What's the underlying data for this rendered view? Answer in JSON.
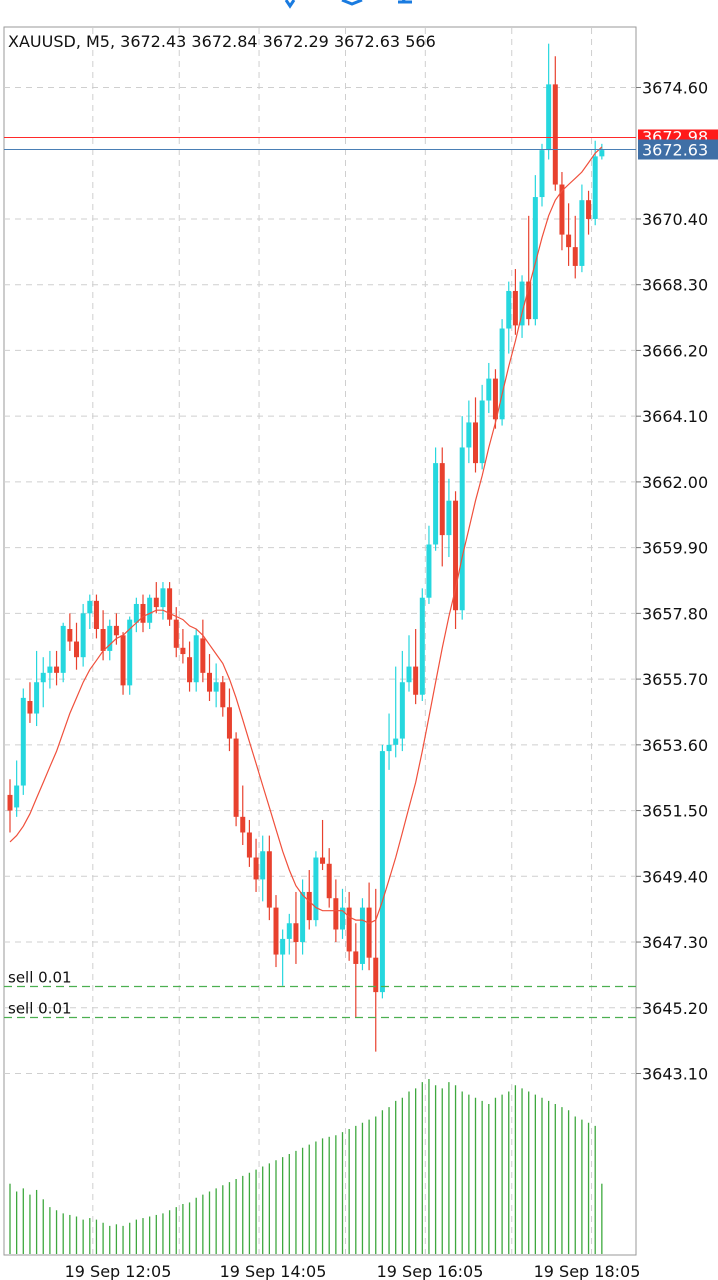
{
  "header": {
    "symbol": "XAUUSD",
    "timeframe": "M5",
    "open": "3672.43",
    "high": "3672.84",
    "low": "3672.29",
    "close": "3672.63",
    "volume": "566"
  },
  "y_ticks": [
    "3674.60",
    "3672.98",
    "3672.63",
    "3670.40",
    "3668.30",
    "3666.20",
    "3664.10",
    "3662.00",
    "3659.90",
    "3657.80",
    "3655.70",
    "3653.60",
    "3651.50",
    "3649.40",
    "3647.30",
    "3645.20",
    "3643.10"
  ],
  "ask_label": "3672.98",
  "bid_label": "3672.63",
  "orders": [
    {
      "label": "sell 0.01",
      "price": 3645.7
    },
    {
      "label": "sell 0.01",
      "price": 3644.75
    }
  ],
  "x_labels": [
    "19 Sep 12:05",
    "19 Sep 14:05",
    "19 Sep 16:05",
    "19 Sep 18:05"
  ],
  "colors": {
    "bull": "#26d7de",
    "bear": "#e8412e",
    "ma": "#f0503c",
    "volume": "#3ea83e",
    "grid": "#cfcfcf",
    "ask_line": "#ff2a2a",
    "bid_line": "#4a7fb5",
    "order_line": "#4caf50",
    "top_icon": "#1a7be0"
  },
  "chart_data": {
    "type": "candlestick",
    "title": "XAUUSD, M5",
    "y_range": [
      3641.9,
      3676.6
    ],
    "x_tick_candle_index": [
      12,
      37,
      62,
      87
    ],
    "candles": [
      [
        3652.0,
        3652.5,
        3650.8,
        3651.5
      ],
      [
        3651.6,
        3653.1,
        3651.3,
        3652.3
      ],
      [
        3652.3,
        3655.4,
        3652.0,
        3655.1
      ],
      [
        3655.0,
        3655.6,
        3654.3,
        3654.6
      ],
      [
        3654.6,
        3656.6,
        3654.2,
        3655.6
      ],
      [
        3655.6,
        3656.4,
        3654.8,
        3655.9
      ],
      [
        3655.9,
        3656.6,
        3655.4,
        3656.1
      ],
      [
        3656.1,
        3656.6,
        3655.5,
        3655.9
      ],
      [
        3655.9,
        3657.5,
        3655.6,
        3657.4
      ],
      [
        3657.3,
        3657.8,
        3656.6,
        3656.9
      ],
      [
        3656.9,
        3657.5,
        3656.0,
        3656.4
      ],
      [
        3656.4,
        3658.1,
        3656.1,
        3657.8
      ],
      [
        3657.8,
        3658.4,
        3657.3,
        3658.2
      ],
      [
        3658.2,
        3658.4,
        3657.0,
        3657.3
      ],
      [
        3657.3,
        3657.9,
        3656.3,
        3656.6
      ],
      [
        3656.6,
        3657.6,
        3656.3,
        3657.4
      ],
      [
        3657.4,
        3657.8,
        3656.8,
        3657.1
      ],
      [
        3657.1,
        3657.2,
        3655.2,
        3655.5
      ],
      [
        3655.5,
        3657.7,
        3655.2,
        3657.6
      ],
      [
        3657.5,
        3658.3,
        3657.2,
        3658.1
      ],
      [
        3658.1,
        3658.4,
        3657.2,
        3657.5
      ],
      [
        3657.5,
        3658.4,
        3657.3,
        3658.3
      ],
      [
        3658.3,
        3658.8,
        3657.8,
        3658.0
      ],
      [
        3658.0,
        3658.8,
        3657.6,
        3658.6
      ],
      [
        3658.6,
        3658.8,
        3657.4,
        3657.6
      ],
      [
        3657.6,
        3658.0,
        3656.4,
        3656.7
      ],
      [
        3656.7,
        3657.3,
        3656.2,
        3656.5
      ],
      [
        3656.4,
        3656.9,
        3655.3,
        3655.6
      ],
      [
        3655.6,
        3657.3,
        3655.3,
        3657.1
      ],
      [
        3657.0,
        3657.6,
        3655.6,
        3655.9
      ],
      [
        3655.9,
        3656.5,
        3655.0,
        3655.3
      ],
      [
        3655.3,
        3656.2,
        3654.8,
        3655.6
      ],
      [
        3655.6,
        3655.8,
        3654.5,
        3654.8
      ],
      [
        3654.8,
        3655.4,
        3653.4,
        3653.8
      ],
      [
        3653.8,
        3654.0,
        3651.0,
        3651.3
      ],
      [
        3651.3,
        3652.3,
        3650.4,
        3650.8
      ],
      [
        3650.8,
        3651.2,
        3649.7,
        3650.0
      ],
      [
        3650.0,
        3650.6,
        3648.9,
        3649.3
      ],
      [
        3649.3,
        3650.7,
        3648.6,
        3650.2
      ],
      [
        3650.2,
        3650.7,
        3648.0,
        3648.4
      ],
      [
        3648.4,
        3648.8,
        3646.5,
        3646.9
      ],
      [
        3646.9,
        3647.7,
        3645.9,
        3647.4
      ],
      [
        3647.4,
        3648.2,
        3646.9,
        3647.9
      ],
      [
        3647.9,
        3648.9,
        3646.6,
        3647.3
      ],
      [
        3647.3,
        3649.3,
        3646.9,
        3648.9
      ],
      [
        3648.9,
        3649.6,
        3647.7,
        3648.0
      ],
      [
        3648.0,
        3650.2,
        3647.8,
        3650.0
      ],
      [
        3650.0,
        3651.2,
        3649.6,
        3649.8
      ],
      [
        3649.8,
        3650.3,
        3648.4,
        3648.7
      ],
      [
        3648.7,
        3649.3,
        3647.3,
        3647.7
      ],
      [
        3647.7,
        3649.0,
        3647.4,
        3648.4
      ],
      [
        3648.4,
        3648.9,
        3646.7,
        3647.0
      ],
      [
        3647.0,
        3647.9,
        3644.9,
        3646.6
      ],
      [
        3646.6,
        3648.7,
        3646.4,
        3648.4
      ],
      [
        3648.4,
        3649.2,
        3646.4,
        3646.8
      ],
      [
        3646.8,
        3649.0,
        3643.8,
        3645.7
      ],
      [
        3645.7,
        3653.6,
        3645.5,
        3653.4
      ],
      [
        3653.4,
        3654.6,
        3652.8,
        3653.6
      ],
      [
        3653.6,
        3656.1,
        3653.2,
        3653.8
      ],
      [
        3653.8,
        3656.6,
        3653.4,
        3655.6
      ],
      [
        3655.6,
        3657.1,
        3655.3,
        3656.1
      ],
      [
        3656.1,
        3657.3,
        3654.9,
        3655.2
      ],
      [
        3655.2,
        3658.6,
        3655.0,
        3658.3
      ],
      [
        3658.3,
        3660.6,
        3658.1,
        3660.0
      ],
      [
        3660.0,
        3663.1,
        3659.8,
        3662.6
      ],
      [
        3662.6,
        3663.1,
        3659.3,
        3660.3
      ],
      [
        3660.3,
        3662.1,
        3659.6,
        3661.4
      ],
      [
        3661.4,
        3661.7,
        3657.3,
        3657.9
      ],
      [
        3657.9,
        3664.1,
        3657.6,
        3663.1
      ],
      [
        3663.1,
        3664.6,
        3662.6,
        3663.9
      ],
      [
        3663.9,
        3664.7,
        3662.3,
        3662.6
      ],
      [
        3662.6,
        3665.1,
        3662.4,
        3664.6
      ],
      [
        3664.6,
        3665.8,
        3664.2,
        3665.3
      ],
      [
        3665.3,
        3665.6,
        3663.7,
        3664.0
      ],
      [
        3664.0,
        3667.2,
        3663.8,
        3666.9
      ],
      [
        3666.9,
        3668.4,
        3666.1,
        3668.1
      ],
      [
        3668.1,
        3668.8,
        3666.7,
        3667.0
      ],
      [
        3667.0,
        3668.6,
        3666.6,
        3668.4
      ],
      [
        3668.4,
        3670.5,
        3667.0,
        3667.2
      ],
      [
        3667.2,
        3671.8,
        3667.0,
        3671.1
      ],
      [
        3671.1,
        3672.8,
        3670.8,
        3672.6
      ],
      [
        3672.6,
        3676.0,
        3672.3,
        3674.7
      ],
      [
        3674.7,
        3675.6,
        3671.3,
        3671.5
      ],
      [
        3671.5,
        3671.9,
        3669.4,
        3669.9
      ],
      [
        3669.9,
        3670.9,
        3668.9,
        3669.5
      ],
      [
        3669.5,
        3670.5,
        3668.5,
        3668.9
      ],
      [
        3668.9,
        3671.5,
        3668.7,
        3671.0
      ],
      [
        3671.0,
        3671.3,
        3669.9,
        3670.4
      ],
      [
        3670.4,
        3672.9,
        3670.2,
        3672.4
      ],
      [
        3672.4,
        3672.8,
        3672.3,
        3672.6
      ]
    ],
    "ma": [
      3650.5,
      3650.7,
      3651.0,
      3651.4,
      3651.9,
      3652.4,
      3652.9,
      3653.4,
      3654.0,
      3654.6,
      3655.1,
      3655.6,
      3656.0,
      3656.3,
      3656.6,
      3656.8,
      3657.0,
      3657.1,
      3657.3,
      3657.5,
      3657.7,
      3657.8,
      3657.9,
      3657.9,
      3657.8,
      3657.7,
      3657.6,
      3657.4,
      3657.3,
      3657.1,
      3656.8,
      3656.5,
      3656.2,
      3655.7,
      3655.1,
      3654.4,
      3653.7,
      3653.0,
      3652.3,
      3651.6,
      3650.9,
      3650.2,
      3649.6,
      3649.1,
      3648.8,
      3648.6,
      3648.4,
      3648.3,
      3648.3,
      3648.3,
      3648.3,
      3648.1,
      3648.0,
      3648.0,
      3647.9,
      3648.0,
      3648.6,
      3649.3,
      3650.0,
      3650.8,
      3651.6,
      3652.4,
      3653.4,
      3654.5,
      3655.6,
      3656.7,
      3657.7,
      3658.6,
      3659.6,
      3660.5,
      3661.4,
      3662.2,
      3663.1,
      3663.9,
      3664.8,
      3665.7,
      3666.5,
      3667.4,
      3668.2,
      3669.0,
      3669.8,
      3670.5,
      3671.0,
      3671.3,
      3671.5,
      3671.7,
      3671.9,
      3672.2,
      3672.5,
      3672.7
    ],
    "volume": [
      45,
      40,
      42,
      38,
      41,
      35,
      30,
      28,
      26,
      25,
      24,
      22,
      23,
      22,
      20,
      18,
      19,
      18,
      20,
      22,
      23,
      24,
      25,
      26,
      28,
      30,
      32,
      33,
      36,
      38,
      40,
      42,
      44,
      46,
      48,
      50,
      52,
      54,
      56,
      58,
      60,
      62,
      64,
      66,
      68,
      70,
      72,
      74,
      75,
      76,
      78,
      80,
      82,
      84,
      86,
      88,
      92,
      94,
      98,
      100,
      104,
      106,
      110,
      112,
      108,
      106,
      110,
      108,
      104,
      102,
      100,
      98,
      96,
      100,
      102,
      104,
      108,
      106,
      104,
      102,
      100,
      98,
      96,
      94,
      92,
      88,
      86,
      84,
      82,
      45
    ]
  }
}
